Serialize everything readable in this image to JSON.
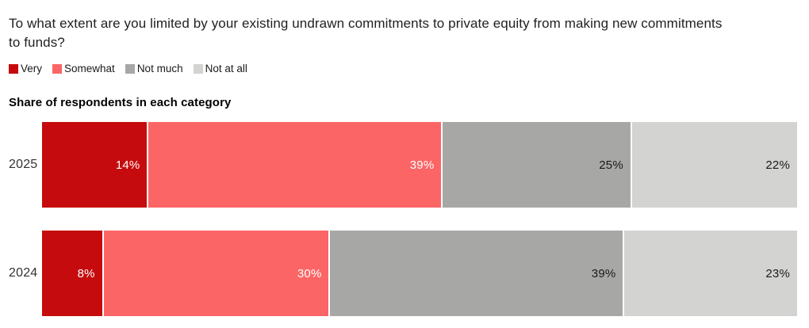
{
  "chart_data": {
    "type": "bar",
    "orientation": "horizontal",
    "stacked": true,
    "title": "To what extent are you limited by your existing undrawn commitments to private equity from making new commitments to funds?",
    "subtitle": "Share of respondents in each category",
    "unit": "%",
    "categories": [
      "2025",
      "2024"
    ],
    "series": [
      {
        "name": "Very",
        "color": "#c50b0d",
        "label_color": "#ffffff",
        "values": [
          14,
          8
        ]
      },
      {
        "name": "Somewhat",
        "color": "#fc6566",
        "label_color": "#ffffff",
        "values": [
          39,
          30
        ]
      },
      {
        "name": "Not much",
        "color": "#a7a7a5",
        "label_color": "#1a1a1a",
        "values": [
          25,
          39
        ]
      },
      {
        "name": "Not at all",
        "color": "#d3d3d1",
        "label_color": "#1a1a1a",
        "values": [
          22,
          23
        ]
      }
    ],
    "xlim": [
      0,
      100
    ],
    "legend_position": "top",
    "grid": false,
    "value_label_format": "{value}%",
    "background": "#ffffff"
  }
}
